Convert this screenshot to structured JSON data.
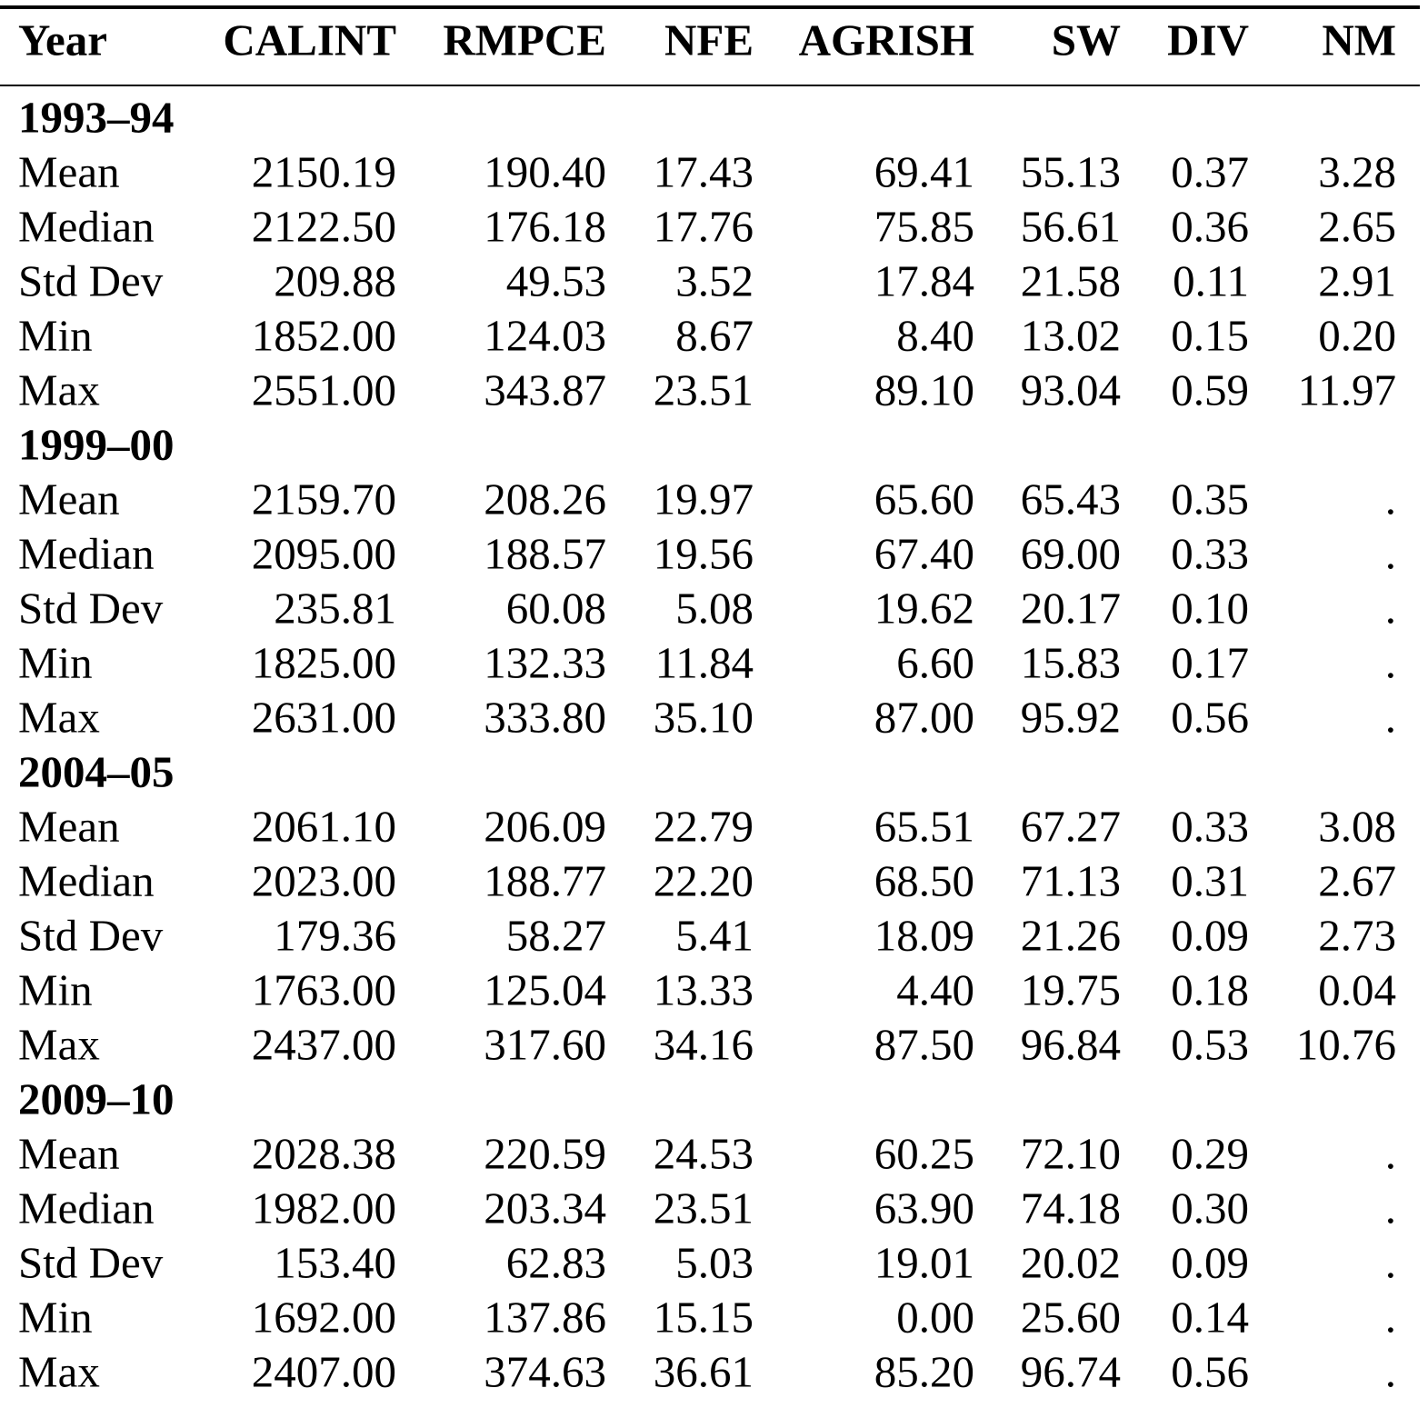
{
  "table": {
    "columns": [
      "Year",
      "CALINT",
      "RMPCE",
      "NFE",
      "AGRISH",
      "SW",
      "DIV",
      "NM"
    ],
    "groups": [
      {
        "label": "1993–94",
        "rows": [
          [
            "Mean",
            "2150.19",
            "190.40",
            "17.43",
            "69.41",
            "55.13",
            "0.37",
            "3.28"
          ],
          [
            "Median",
            "2122.50",
            "176.18",
            "17.76",
            "75.85",
            "56.61",
            "0.36",
            "2.65"
          ],
          [
            "Std Dev",
            "209.88",
            "49.53",
            "3.52",
            "17.84",
            "21.58",
            "0.11",
            "2.91"
          ],
          [
            "Min",
            "1852.00",
            "124.03",
            "8.67",
            "8.40",
            "13.02",
            "0.15",
            "0.20"
          ],
          [
            "Max",
            "2551.00",
            "343.87",
            "23.51",
            "89.10",
            "93.04",
            "0.59",
            "11.97"
          ]
        ]
      },
      {
        "label": "1999–00",
        "rows": [
          [
            "Mean",
            "2159.70",
            "208.26",
            "19.97",
            "65.60",
            "65.43",
            "0.35",
            "."
          ],
          [
            "Median",
            "2095.00",
            "188.57",
            "19.56",
            "67.40",
            "69.00",
            "0.33",
            "."
          ],
          [
            "Std Dev",
            "235.81",
            "60.08",
            "5.08",
            "19.62",
            "20.17",
            "0.10",
            "."
          ],
          [
            "Min",
            "1825.00",
            "132.33",
            "11.84",
            "6.60",
            "15.83",
            "0.17",
            "."
          ],
          [
            "Max",
            "2631.00",
            "333.80",
            "35.10",
            "87.00",
            "95.92",
            "0.56",
            "."
          ]
        ]
      },
      {
        "label": "2004–05",
        "rows": [
          [
            "Mean",
            "2061.10",
            "206.09",
            "22.79",
            "65.51",
            "67.27",
            "0.33",
            "3.08"
          ],
          [
            "Median",
            "2023.00",
            "188.77",
            "22.20",
            "68.50",
            "71.13",
            "0.31",
            "2.67"
          ],
          [
            "Std Dev",
            "179.36",
            "58.27",
            "5.41",
            "18.09",
            "21.26",
            "0.09",
            "2.73"
          ],
          [
            "Min",
            "1763.00",
            "125.04",
            "13.33",
            "4.40",
            "19.75",
            "0.18",
            "0.04"
          ],
          [
            "Max",
            "2437.00",
            "317.60",
            "34.16",
            "87.50",
            "96.84",
            "0.53",
            "10.76"
          ]
        ]
      },
      {
        "label": "2009–10",
        "rows": [
          [
            "Mean",
            "2028.38",
            "220.59",
            "24.53",
            "60.25",
            "72.10",
            "0.29",
            "."
          ],
          [
            "Median",
            "1982.00",
            "203.34",
            "23.51",
            "63.90",
            "74.18",
            "0.30",
            "."
          ],
          [
            "Std Dev",
            "153.40",
            "62.83",
            "5.03",
            "19.01",
            "20.02",
            "0.09",
            "."
          ],
          [
            "Min",
            "1692.00",
            "137.86",
            "15.15",
            "0.00",
            "25.60",
            "0.14",
            "."
          ],
          [
            "Max",
            "2407.00",
            "374.63",
            "36.61",
            "85.20",
            "96.74",
            "0.56",
            "."
          ]
        ]
      }
    ]
  }
}
